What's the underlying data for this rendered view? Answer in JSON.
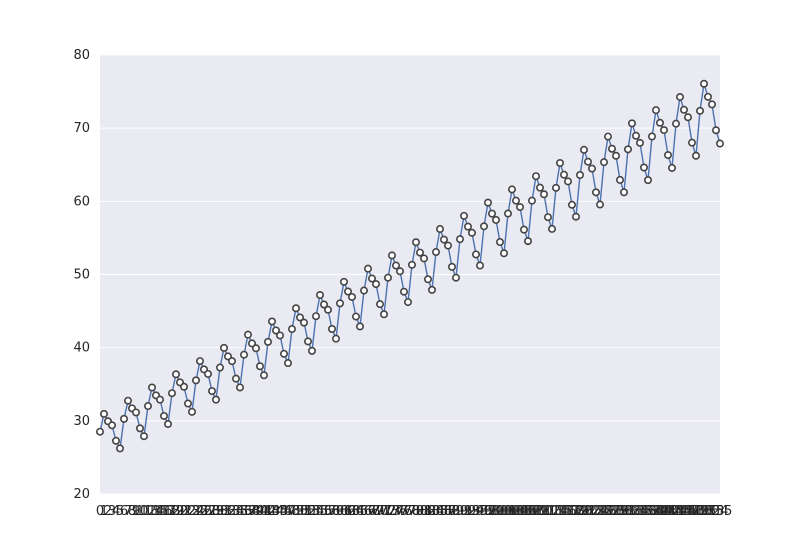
{
  "chart_data": {
    "type": "line",
    "title": "",
    "xlabel": "",
    "ylabel": "",
    "grid": true,
    "ylim": [
      20,
      80
    ],
    "yticks": [
      20,
      30,
      40,
      50,
      60,
      70,
      80
    ],
    "x_tick_labels_note": "dense overlapping integer tick labels (one per point)",
    "x_range": [
      0,
      155
    ],
    "trend": {
      "start": 28,
      "end": 73
    },
    "seasonal": {
      "period": 6,
      "amplitude_start": 2.6,
      "amplitude_end": 4.2
    },
    "series_color": "#4c72b0",
    "marker_fill": "#ffffff",
    "marker_edge": "#444444"
  },
  "colors": {
    "plot_bg": "#eaeaf2",
    "grid": "#ffffff",
    "text": "#262626"
  }
}
